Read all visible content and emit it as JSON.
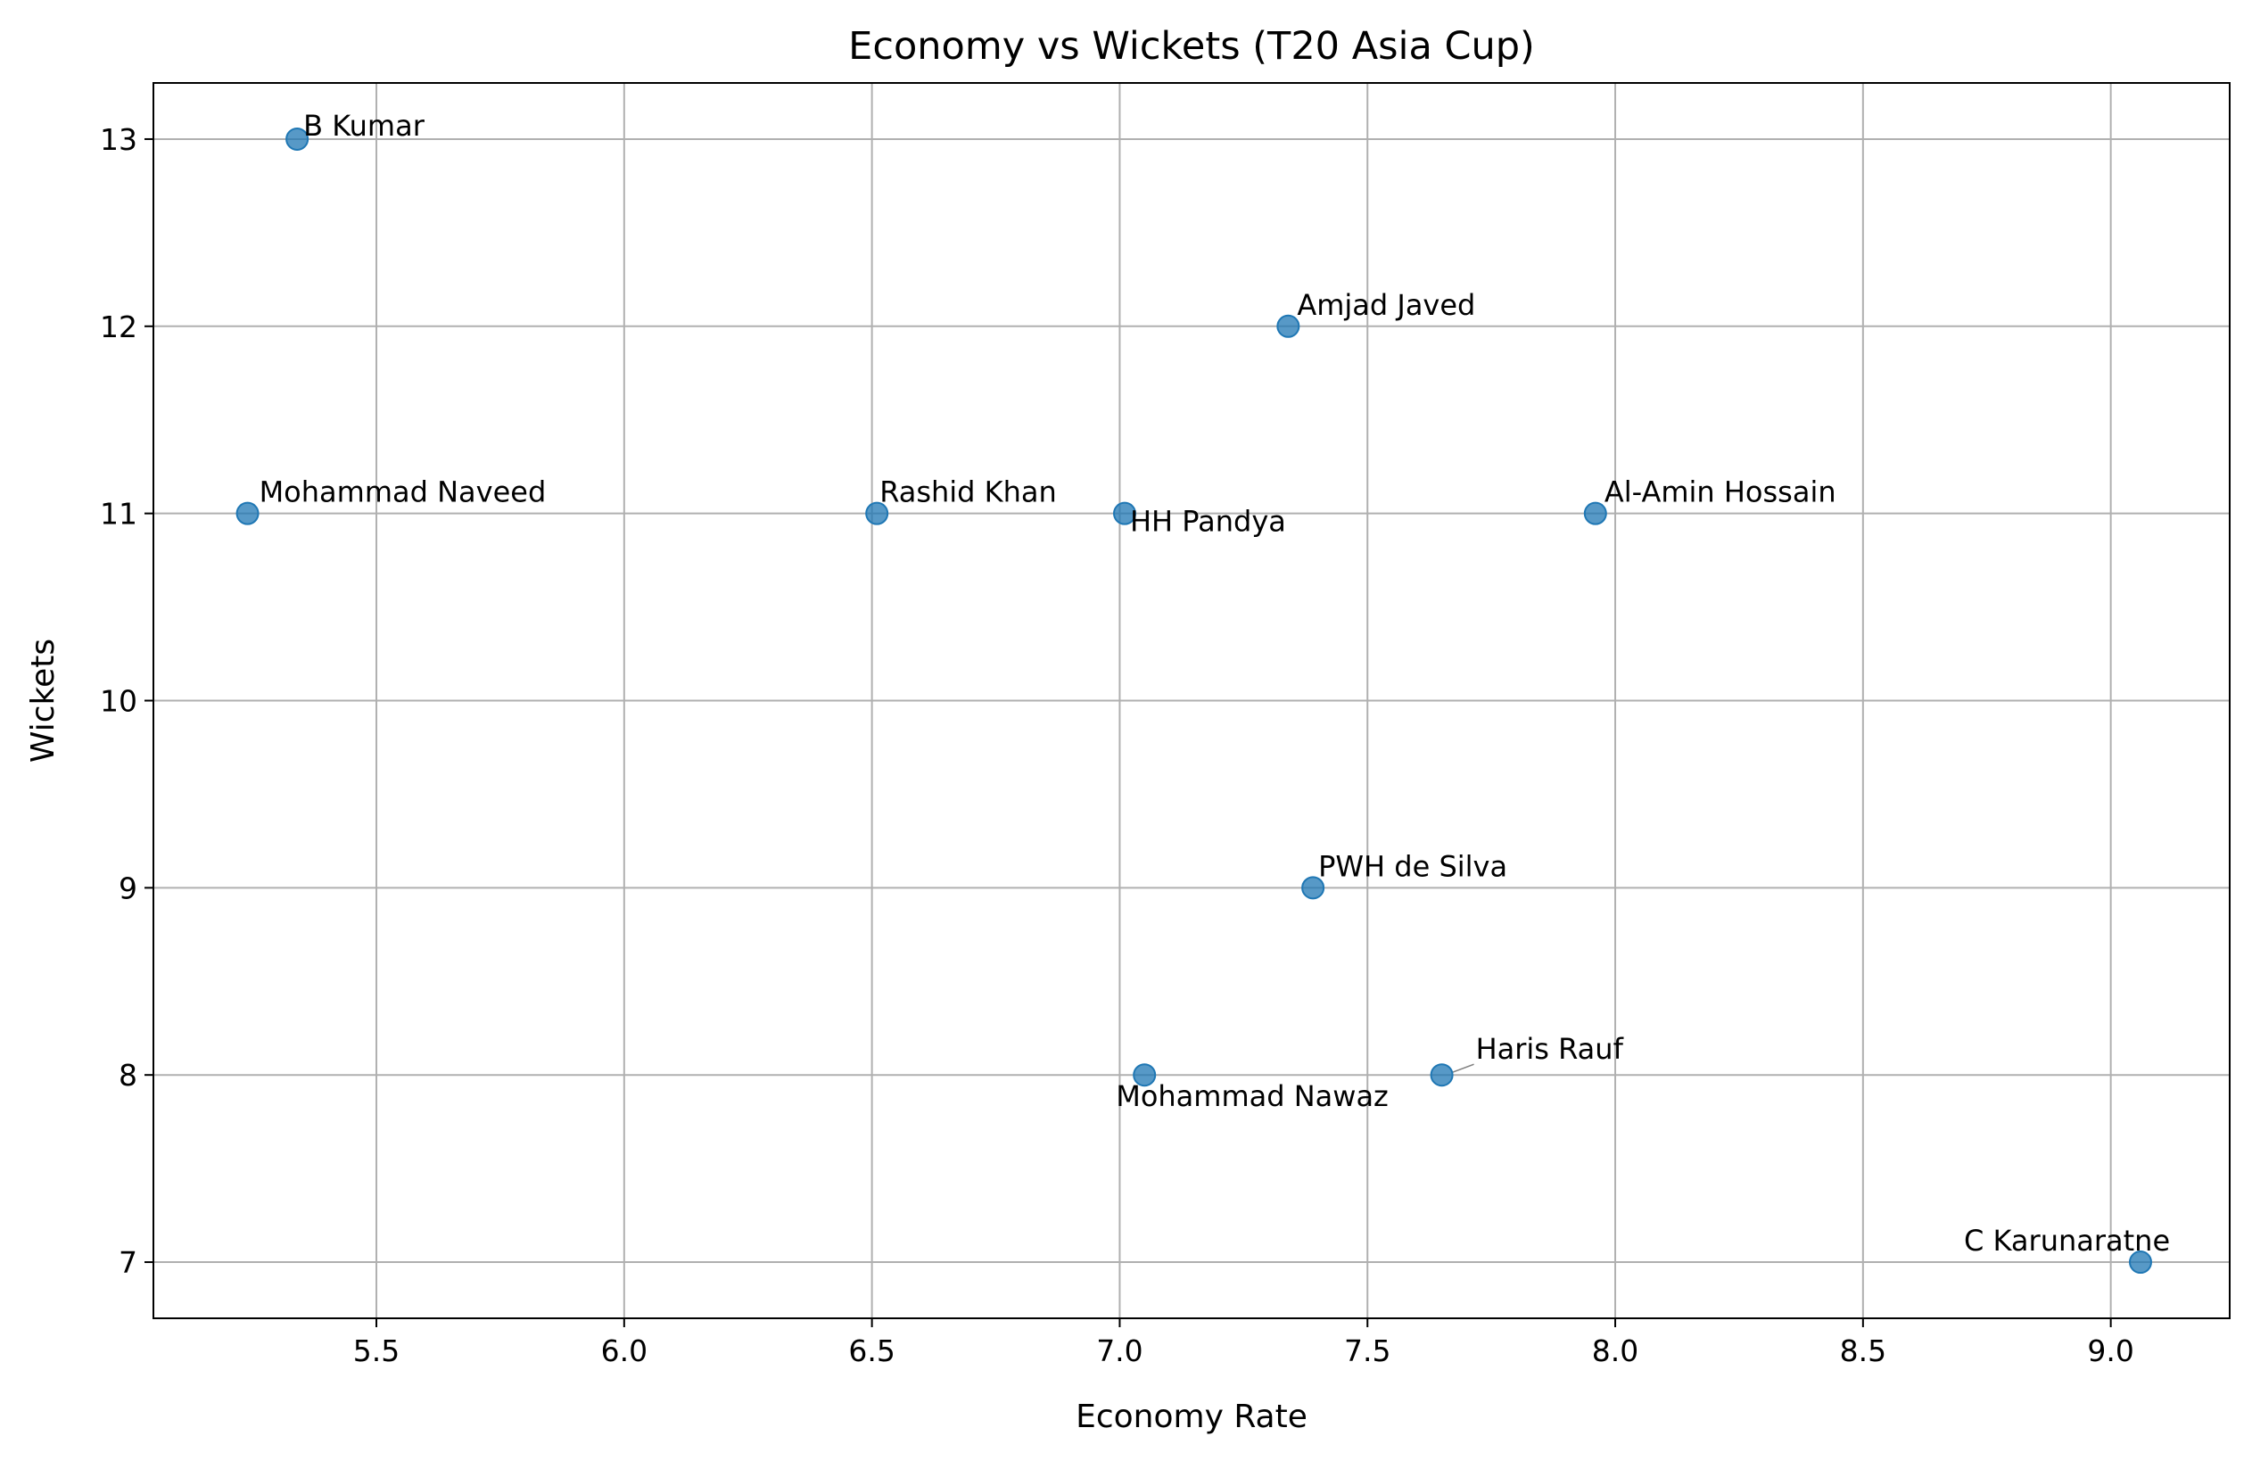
{
  "chart_data": {
    "type": "scatter",
    "title": "Economy vs Wickets (T20 Asia Cup)",
    "xlabel": "Economy Rate",
    "ylabel": "Wickets",
    "xlim": [
      5.05,
      9.24
    ],
    "ylim": [
      6.7,
      13.3
    ],
    "xticks": [
      5.5,
      6.0,
      6.5,
      7.0,
      7.5,
      8.0,
      8.5,
      9.0
    ],
    "xtick_labels": [
      "5.5",
      "6.0",
      "6.5",
      "7.0",
      "7.5",
      "8.0",
      "8.5",
      "9.0"
    ],
    "yticks": [
      7,
      8,
      9,
      10,
      11,
      12,
      13
    ],
    "ytick_labels": [
      "7",
      "8",
      "9",
      "10",
      "11",
      "12",
      "13"
    ],
    "grid": true,
    "marker_color": "#1f77b4",
    "points": [
      {
        "label": "B Kumar",
        "x": 5.34,
        "y": 13
      },
      {
        "label": "Amjad Javed",
        "x": 7.34,
        "y": 12
      },
      {
        "label": "Mohammad Naveed",
        "x": 5.24,
        "y": 11
      },
      {
        "label": "Rashid Khan",
        "x": 6.51,
        "y": 11
      },
      {
        "label": "HH Pandya",
        "x": 7.01,
        "y": 11
      },
      {
        "label": "Al-Amin Hossain",
        "x": 7.96,
        "y": 11
      },
      {
        "label": "PWH de Silva",
        "x": 7.39,
        "y": 9
      },
      {
        "label": "Mohammad Nawaz",
        "x": 7.05,
        "y": 8
      },
      {
        "label": "Haris Rauf",
        "x": 7.65,
        "y": 8
      },
      {
        "label": "C Karunaratne",
        "x": 9.06,
        "y": 7
      }
    ]
  }
}
